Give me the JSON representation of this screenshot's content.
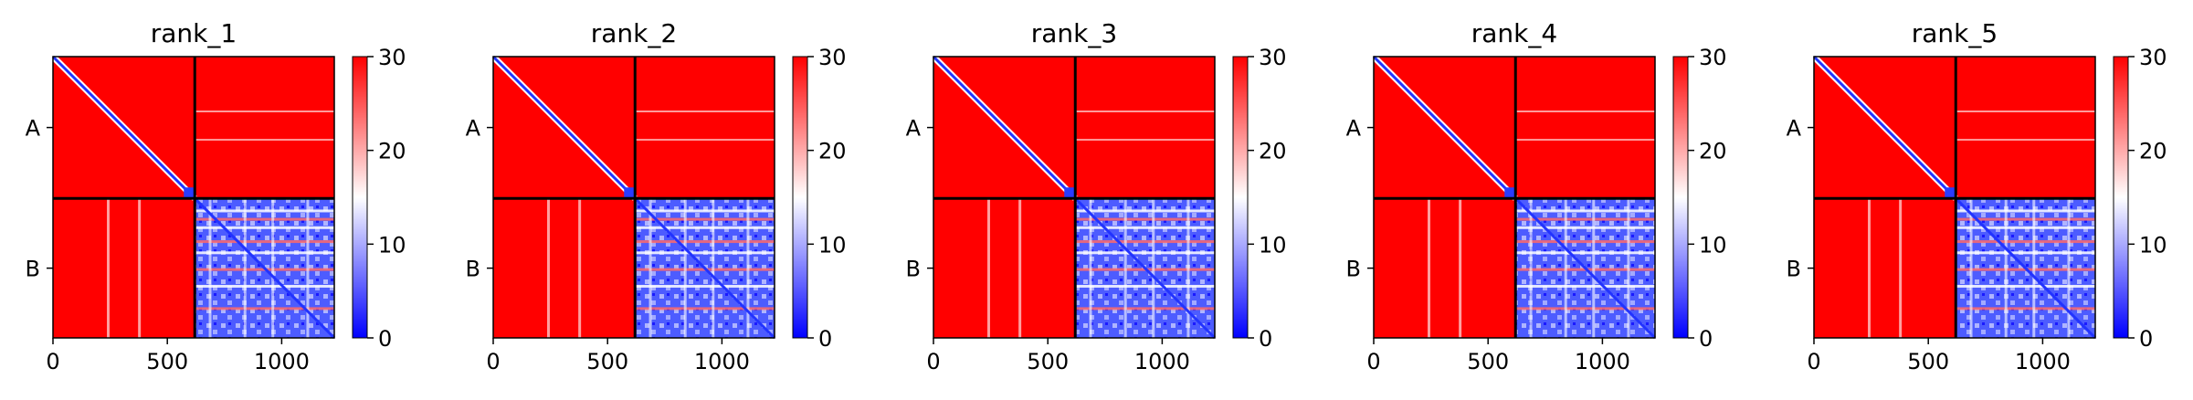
{
  "chart_data": [
    {
      "type": "heatmap",
      "title": "rank_1",
      "x_ticks": [
        0,
        500,
        1000
      ],
      "x_range": [
        0,
        1230
      ],
      "chain_labels": [
        "A",
        "B"
      ],
      "chain_boundary": 620,
      "colorbar": {
        "ticks": [
          0,
          10,
          20,
          30
        ],
        "range": [
          0,
          30
        ],
        "colormap": "bwr"
      }
    },
    {
      "type": "heatmap",
      "title": "rank_2",
      "x_ticks": [
        0,
        500,
        1000
      ],
      "x_range": [
        0,
        1230
      ],
      "chain_labels": [
        "A",
        "B"
      ],
      "chain_boundary": 620,
      "colorbar": {
        "ticks": [
          0,
          10,
          20,
          30
        ],
        "range": [
          0,
          30
        ],
        "colormap": "bwr"
      }
    },
    {
      "type": "heatmap",
      "title": "rank_3",
      "x_ticks": [
        0,
        500,
        1000
      ],
      "x_range": [
        0,
        1230
      ],
      "chain_labels": [
        "A",
        "B"
      ],
      "chain_boundary": 620,
      "colorbar": {
        "ticks": [
          0,
          10,
          20,
          30
        ],
        "range": [
          0,
          30
        ],
        "colormap": "bwr"
      }
    },
    {
      "type": "heatmap",
      "title": "rank_4",
      "x_ticks": [
        0,
        500,
        1000
      ],
      "x_range": [
        0,
        1230
      ],
      "chain_labels": [
        "A",
        "B"
      ],
      "chain_boundary": 620,
      "colorbar": {
        "ticks": [
          0,
          10,
          20,
          30
        ],
        "range": [
          0,
          30
        ],
        "colormap": "bwr"
      }
    },
    {
      "type": "heatmap",
      "title": "rank_5",
      "x_ticks": [
        0,
        500,
        1000
      ],
      "x_range": [
        0,
        1230
      ],
      "chain_labels": [
        "A",
        "B"
      ],
      "chain_boundary": 620,
      "colorbar": {
        "ticks": [
          0,
          10,
          20,
          30
        ],
        "range": [
          0,
          30
        ],
        "colormap": "bwr"
      }
    }
  ],
  "colors": {
    "high": "#ff0000",
    "mid": "#ffffff",
    "low": "#0000ff",
    "divider": "#000000"
  }
}
